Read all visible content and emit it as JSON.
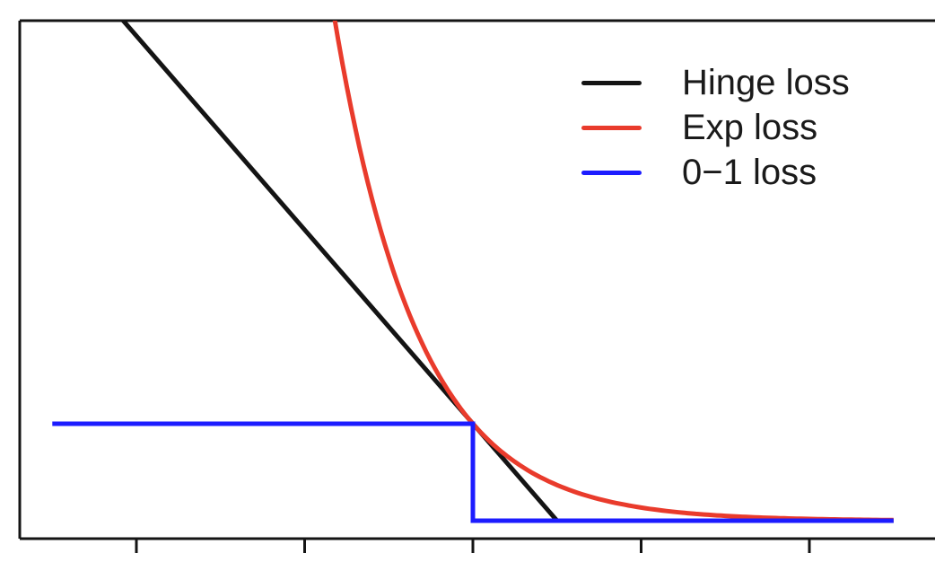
{
  "chart_data": {
    "type": "line",
    "title": "",
    "xlabel": "",
    "ylabel": "",
    "x_range": [
      -5,
      5
    ],
    "x_ticks": [
      -4,
      -2,
      0,
      2,
      4
    ],
    "tick_labels_visible": false,
    "grid": false,
    "axis_box_sides": [
      "top",
      "left",
      "bottom"
    ],
    "axis_color": "#141414",
    "background_color": "#ffffff",
    "y_view": [
      -0.19,
      5.16
    ],
    "series": [
      {
        "name": "Hinge loss",
        "color": "#141414",
        "formula": "max(0, 1 - x)",
        "points": [
          [
            -5,
            6
          ],
          [
            1,
            0
          ],
          [
            5,
            0
          ]
        ]
      },
      {
        "name": "Exp loss",
        "color": "#e93b2c",
        "formula": "exp(-x)",
        "points": [
          [
            -1.64,
            5.16
          ],
          [
            0,
            1
          ],
          [
            1,
            0.368
          ],
          [
            2,
            0.135
          ],
          [
            3,
            0.05
          ],
          [
            4,
            0.018
          ],
          [
            5,
            0.0067
          ]
        ]
      },
      {
        "name": "0−1 loss",
        "color": "#1c1cff",
        "formula": "1 if x < 0 else 0",
        "points": [
          [
            -5,
            1
          ],
          [
            0,
            1
          ],
          [
            0,
            0
          ],
          [
            5,
            0
          ]
        ]
      }
    ],
    "legend": {
      "position": "top-right",
      "entries": [
        {
          "label": "Hinge loss",
          "color": "#141414"
        },
        {
          "label": "Exp loss",
          "color": "#e93b2c"
        },
        {
          "label": "0−1 loss",
          "color": "#1c1cff"
        }
      ]
    }
  }
}
